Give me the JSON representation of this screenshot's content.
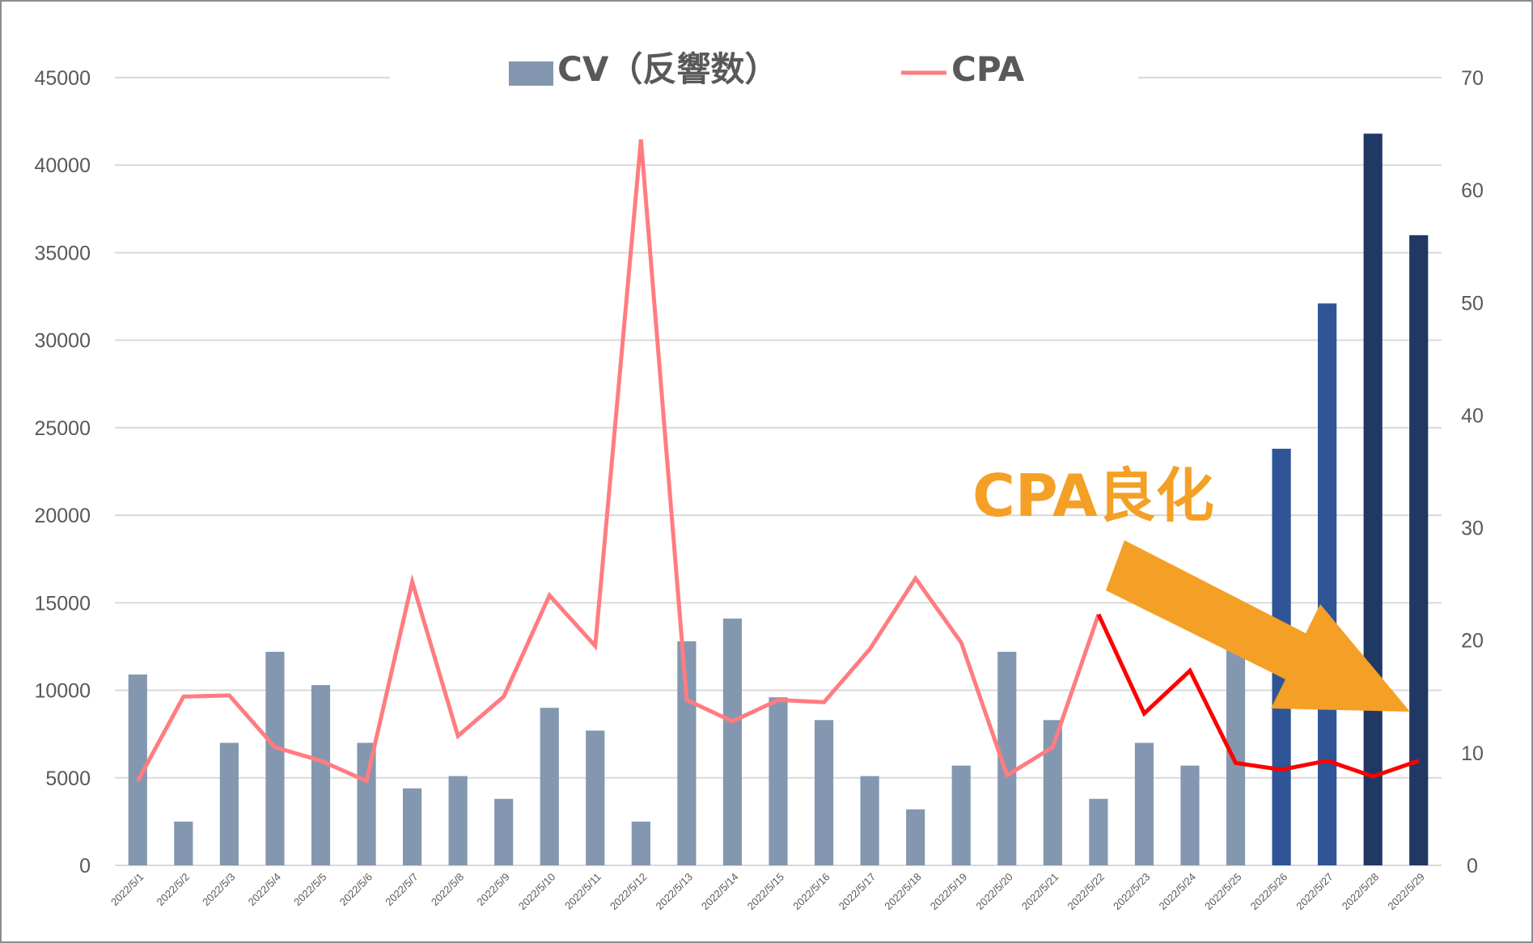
{
  "chart_data": {
    "type": "bar",
    "title": "",
    "categories": [
      "2022/5/1",
      "2022/5/2",
      "2022/5/3",
      "2022/5/4",
      "2022/5/5",
      "2022/5/6",
      "2022/5/7",
      "2022/5/8",
      "2022/5/9",
      "2022/5/10",
      "2022/5/11",
      "2022/5/12",
      "2022/5/13",
      "2022/5/14",
      "2022/5/15",
      "2022/5/16",
      "2022/5/17",
      "2022/5/18",
      "2022/5/19",
      "2022/5/20",
      "2022/5/21",
      "2022/5/22",
      "2022/5/23",
      "2022/5/24",
      "2022/5/25",
      "2022/5/26",
      "2022/5/27",
      "2022/5/28",
      "2022/5/29"
    ],
    "series": [
      {
        "name": "CV（反響数）",
        "type": "bar",
        "axis": "left",
        "values": [
          10900,
          2500,
          7000,
          12200,
          10300,
          7000,
          4400,
          5100,
          3800,
          9000,
          7700,
          2500,
          12800,
          14100,
          9600,
          8300,
          5100,
          3200,
          5700,
          12200,
          8300,
          3800,
          7000,
          5700,
          12600,
          23800,
          32100,
          41800,
          36000
        ]
      },
      {
        "name": "CPA",
        "type": "line",
        "axis": "right",
        "values": [
          7.5,
          15,
          15.1,
          10.5,
          9.3,
          7.5,
          25.2,
          11.5,
          15,
          24,
          19.5,
          64.5,
          14.7,
          12.8,
          14.7,
          14.5,
          19.2,
          25.5,
          19.8,
          8,
          10.5,
          22.3,
          13.5,
          17.3,
          9.1,
          8.5,
          9.3,
          7.9,
          9.3
        ]
      }
    ],
    "bar_colors": [
      "#8497b0",
      "#8497b0",
      "#8497b0",
      "#8497b0",
      "#8497b0",
      "#8497b0",
      "#8497b0",
      "#8497b0",
      "#8497b0",
      "#8497b0",
      "#8497b0",
      "#8497b0",
      "#8497b0",
      "#8497b0",
      "#8497b0",
      "#8497b0",
      "#8497b0",
      "#8497b0",
      "#8497b0",
      "#8497b0",
      "#8497b0",
      "#8497b0",
      "#8497b0",
      "#8497b0",
      "#8497b0",
      "#2f5597",
      "#2f5597",
      "#203864",
      "#203864"
    ],
    "line_color": "#ff7c80",
    "line_highlight_color": "#ff0000",
    "line_highlight_from_index": 21,
    "y_left": {
      "min": 0,
      "max": 45000,
      "ticks": [
        0,
        5000,
        10000,
        15000,
        20000,
        25000,
        30000,
        35000,
        40000,
        45000
      ]
    },
    "y_right": {
      "min": 0,
      "max": 70,
      "ticks": [
        0,
        10,
        20,
        30,
        40,
        50,
        60,
        70
      ]
    },
    "grid": true,
    "legend": {
      "position": "top-center",
      "items": [
        {
          "label": "CV（反響数）",
          "symbol": "bar",
          "color": "#8497b0"
        },
        {
          "label": "CPA",
          "symbol": "line",
          "color": "#ff7c80"
        }
      ]
    },
    "annotation": {
      "text": "CPA良化",
      "color": "#f4a026",
      "arrow_color": "#f4a026",
      "arrow_direction": "down-right"
    }
  }
}
